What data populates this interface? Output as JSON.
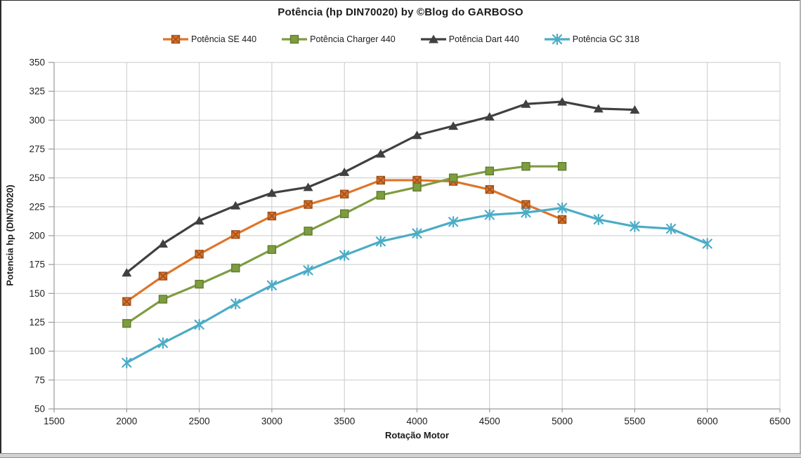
{
  "title": "Potência (hp DIN70020) by ©Blog do GARBOSO",
  "x_axis_title": "Rotação Motor",
  "y_axis_title": "Potencia hp (DIN70020)",
  "colors": {
    "grid": "#c9c9c9",
    "axis": "#9a9a9a",
    "text": "#1f1f1f",
    "se": "#df7428",
    "se_accent": "#a0521e",
    "charger": "#7e9c40",
    "charger_accent": "#617c2c",
    "dart": "#404040",
    "gc": "#4bacc6"
  },
  "chart_data": {
    "type": "line",
    "title": "Potência (hp DIN70020) by ©Blog do GARBOSO",
    "xlabel": "Rotação Motor",
    "ylabel": "Potencia hp (DIN70020)",
    "xlim": [
      1500,
      6500
    ],
    "ylim": [
      50,
      350
    ],
    "x_ticks": [
      1500,
      2000,
      2500,
      3000,
      3500,
      4000,
      4500,
      5000,
      5500,
      6000,
      6500
    ],
    "y_ticks": [
      50,
      75,
      100,
      125,
      150,
      175,
      200,
      225,
      250,
      275,
      300,
      325,
      350
    ],
    "grid": true,
    "legend_position": "top",
    "series": [
      {
        "name": "Potência SE 440",
        "color": "#df7428",
        "accent": "#a0521e",
        "marker": "square-x",
        "x": [
          2000,
          2250,
          2500,
          2750,
          3000,
          3250,
          3500,
          3750,
          4000,
          4250,
          4500,
          4750,
          5000
        ],
        "values": [
          143,
          165,
          184,
          201,
          217,
          227,
          236,
          248,
          248,
          247,
          240,
          227,
          214
        ]
      },
      {
        "name": "Potência Charger 440",
        "color": "#7e9c40",
        "accent": "#617c2c",
        "marker": "square",
        "x": [
          2000,
          2250,
          2500,
          2750,
          3000,
          3250,
          3500,
          3750,
          4000,
          4250,
          4500,
          4750,
          5000
        ],
        "values": [
          124,
          145,
          158,
          172,
          188,
          204,
          219,
          235,
          242,
          250,
          256,
          260,
          260
        ]
      },
      {
        "name": "Potência Dart 440",
        "color": "#404040",
        "accent": "#2b2b2b",
        "marker": "triangle",
        "x": [
          2000,
          2250,
          2500,
          2750,
          3000,
          3250,
          3500,
          3750,
          4000,
          4250,
          4500,
          4750,
          5000,
          5250,
          5500
        ],
        "values": [
          168,
          193,
          213,
          226,
          237,
          242,
          255,
          271,
          287,
          295,
          303,
          314,
          316,
          310,
          309
        ]
      },
      {
        "name": "Potência GC 318",
        "color": "#4bacc6",
        "accent": "#3a93ac",
        "marker": "asterisk",
        "x": [
          2000,
          2250,
          2500,
          2750,
          3000,
          3250,
          3500,
          3750,
          4000,
          4250,
          4500,
          4750,
          5000,
          5250,
          5500,
          5750,
          6000
        ],
        "values": [
          90,
          107,
          123,
          141,
          157,
          170,
          183,
          195,
          202,
          212,
          218,
          220,
          224,
          214,
          208,
          206,
          193
        ]
      }
    ]
  }
}
